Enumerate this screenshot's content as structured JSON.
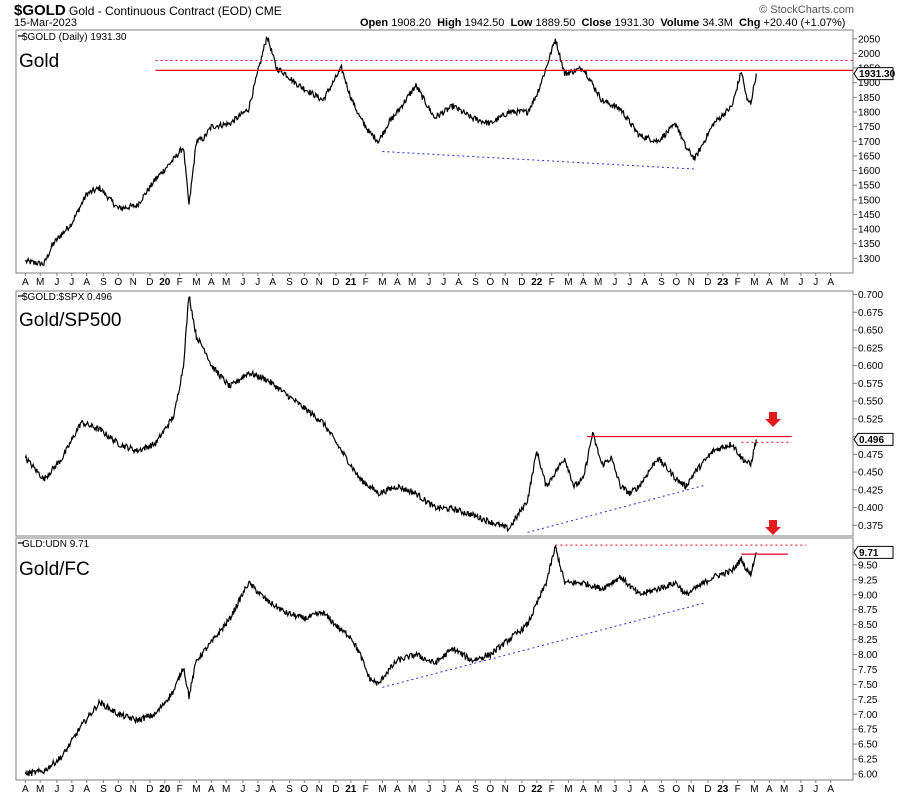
{
  "header": {
    "symbol": "$GOLD",
    "description": "Gold - Continuous Contract (EOD)",
    "exchange": "CME",
    "date": "15-Mar-2023",
    "open_label": "Open",
    "open": "1908.20",
    "high_label": "High",
    "high": "1942.50",
    "low_label": "Low",
    "low": "1889.50",
    "close_label": "Close",
    "close": "1931.30",
    "volume_label": "Volume",
    "volume": "34.3M",
    "chg_label": "Chg",
    "chg": "+20.40 (+1.07%)",
    "copyright": "© StockCharts.com"
  },
  "x_axis": {
    "labels": [
      {
        "t": 2019.0,
        "text": "A"
      },
      {
        "t": 2019.08,
        "text": "M"
      },
      {
        "t": 2019.17,
        "text": "J"
      },
      {
        "t": 2019.25,
        "text": "J"
      },
      {
        "t": 2019.33,
        "text": "A"
      },
      {
        "t": 2019.42,
        "text": "S"
      },
      {
        "t": 2019.5,
        "text": "O"
      },
      {
        "t": 2019.58,
        "text": "N"
      },
      {
        "t": 2019.67,
        "text": "D"
      },
      {
        "t": 2019.75,
        "text": "20",
        "year": true
      },
      {
        "t": 2019.83,
        "text": "F"
      },
      {
        "t": 2019.92,
        "text": "M"
      },
      {
        "t": 2020.0,
        "text": "A"
      },
      {
        "t": 2020.08,
        "text": "M"
      },
      {
        "t": 2020.17,
        "text": "J"
      },
      {
        "t": 2020.25,
        "text": "J"
      },
      {
        "t": 2020.33,
        "text": "A"
      },
      {
        "t": 2020.42,
        "text": "S"
      },
      {
        "t": 2020.5,
        "text": "O"
      },
      {
        "t": 2020.58,
        "text": "N"
      },
      {
        "t": 2020.67,
        "text": "D"
      },
      {
        "t": 2020.75,
        "text": "21",
        "year": true
      },
      {
        "t": 2020.83,
        "text": "F"
      },
      {
        "t": 2020.92,
        "text": "M"
      },
      {
        "t": 2021.0,
        "text": "A"
      },
      {
        "t": 2021.08,
        "text": "M"
      },
      {
        "t": 2021.17,
        "text": "J"
      },
      {
        "t": 2021.25,
        "text": "J"
      },
      {
        "t": 2021.33,
        "text": "A"
      },
      {
        "t": 2021.42,
        "text": "S"
      },
      {
        "t": 2021.5,
        "text": "O"
      },
      {
        "t": 2021.58,
        "text": "N"
      },
      {
        "t": 2021.67,
        "text": "D"
      },
      {
        "t": 2021.75,
        "text": "22",
        "year": true
      },
      {
        "t": 2021.83,
        "text": "F"
      },
      {
        "t": 2021.92,
        "text": "M"
      },
      {
        "t": 2022.0,
        "text": "A"
      },
      {
        "t": 2022.08,
        "text": "M"
      },
      {
        "t": 2022.17,
        "text": "J"
      },
      {
        "t": 2022.25,
        "text": "J"
      },
      {
        "t": 2022.33,
        "text": "A"
      },
      {
        "t": 2022.42,
        "text": "S"
      },
      {
        "t": 2022.5,
        "text": "O"
      },
      {
        "t": 2022.58,
        "text": "N"
      },
      {
        "t": 2022.67,
        "text": "D"
      },
      {
        "t": 2022.75,
        "text": "23",
        "year": true
      },
      {
        "t": 2022.83,
        "text": "F"
      },
      {
        "t": 2022.92,
        "text": "M"
      },
      {
        "t": 2023.0,
        "text": "A"
      },
      {
        "t": 2023.08,
        "text": "M"
      },
      {
        "t": 2023.17,
        "text": "J"
      },
      {
        "t": 2023.25,
        "text": "J"
      },
      {
        "t": 2023.33,
        "text": "A"
      }
    ]
  },
  "chart_data": [
    {
      "type": "line",
      "panel_title": "Gold",
      "legend": "$GOLD (Daily) 1931.30",
      "last_value": "1931.30",
      "ylim": [
        1250,
        2080
      ],
      "yticks": [
        1300,
        1350,
        1400,
        1450,
        1500,
        1550,
        1600,
        1650,
        1700,
        1750,
        1800,
        1850,
        1900,
        1950,
        2000,
        2050
      ],
      "series": [
        {
          "x": [
            2019.0,
            2019.1,
            2019.15,
            2019.25,
            2019.33,
            2019.4,
            2019.5,
            2019.6,
            2019.7,
            2019.8,
            2019.85,
            2019.88,
            2019.92,
            2019.96,
            2020.0,
            2020.1,
            2020.2,
            2020.3,
            2020.35,
            2020.4,
            2020.45,
            2020.5,
            2020.6,
            2020.7,
            2020.75,
            2020.8,
            2020.85,
            2020.9,
            2020.95,
            2021.0,
            2021.1,
            2021.2,
            2021.3,
            2021.4,
            2021.5,
            2021.6,
            2021.7,
            2021.75,
            2021.8,
            2021.85,
            2021.9,
            2022.0,
            2022.1,
            2022.2,
            2022.3,
            2022.4,
            2022.5,
            2022.55,
            2022.6,
            2022.7,
            2022.8,
            2022.85,
            2022.88,
            2022.9,
            2022.93
          ],
          "y": [
            1290,
            1280,
            1350,
            1420,
            1520,
            1540,
            1470,
            1480,
            1570,
            1640,
            1680,
            1480,
            1700,
            1710,
            1750,
            1760,
            1810,
            2060,
            1950,
            1930,
            1900,
            1880,
            1840,
            1950,
            1850,
            1780,
            1730,
            1700,
            1760,
            1800,
            1890,
            1780,
            1820,
            1780,
            1760,
            1800,
            1800,
            1860,
            1950,
            2050,
            1930,
            1950,
            1840,
            1810,
            1720,
            1700,
            1760,
            1680,
            1640,
            1760,
            1820,
            1940,
            1840,
            1830,
            1931
          ]
        }
      ],
      "annotations": {
        "resistance": 1942,
        "resistance_dotted": 1976,
        "support_trend": [
          [
            2020.92,
            1665
          ],
          [
            2022.6,
            1605
          ]
        ]
      }
    },
    {
      "type": "line",
      "panel_title": "Gold/SP500",
      "legend": "$GOLD:$SPX 0.496",
      "last_value": "0.496",
      "ylim": [
        0.36,
        0.705
      ],
      "yticks": [
        0.375,
        0.4,
        0.425,
        0.45,
        0.475,
        0.5,
        0.525,
        0.55,
        0.575,
        0.6,
        0.625,
        0.65,
        0.675,
        0.7
      ],
      "series": [
        {
          "x": [
            2019.0,
            2019.1,
            2019.2,
            2019.3,
            2019.4,
            2019.5,
            2019.6,
            2019.7,
            2019.8,
            2019.85,
            2019.88,
            2019.92,
            2019.97,
            2020.0,
            2020.1,
            2020.2,
            2020.3,
            2020.4,
            2020.5,
            2020.6,
            2020.7,
            2020.8,
            2020.9,
            2021.0,
            2021.1,
            2021.2,
            2021.3,
            2021.4,
            2021.5,
            2021.6,
            2021.7,
            2021.75,
            2021.8,
            2021.85,
            2021.9,
            2021.95,
            2022.0,
            2022.05,
            2022.1,
            2022.15,
            2022.2,
            2022.25,
            2022.3,
            2022.4,
            2022.5,
            2022.55,
            2022.6,
            2022.7,
            2022.8,
            2022.85,
            2022.9,
            2022.93
          ],
          "y": [
            0.47,
            0.44,
            0.47,
            0.52,
            0.51,
            0.49,
            0.48,
            0.49,
            0.53,
            0.6,
            0.7,
            0.64,
            0.62,
            0.6,
            0.57,
            0.59,
            0.58,
            0.56,
            0.54,
            0.52,
            0.48,
            0.44,
            0.42,
            0.43,
            0.42,
            0.4,
            0.398,
            0.39,
            0.38,
            0.37,
            0.41,
            0.48,
            0.43,
            0.45,
            0.47,
            0.43,
            0.44,
            0.505,
            0.46,
            0.47,
            0.43,
            0.42,
            0.43,
            0.47,
            0.44,
            0.43,
            0.45,
            0.48,
            0.49,
            0.47,
            0.46,
            0.496
          ]
        }
      ],
      "annotations": {
        "resistance": 0.5,
        "resistance_dotted": 0.492,
        "support_trend": [
          [
            2021.7,
            0.365
          ],
          [
            2022.66,
            0.432
          ]
        ],
        "arrow_at": 2023.02
      }
    },
    {
      "type": "line",
      "panel_title": "Gold/FC",
      "legend": "GLD:UDN 9.71",
      "last_value": "9.71",
      "ylim": [
        5.9,
        9.95
      ],
      "yticks": [
        6.0,
        6.25,
        6.5,
        6.75,
        7.0,
        7.25,
        7.5,
        7.75,
        8.0,
        8.25,
        8.5,
        8.75,
        9.0,
        9.25,
        9.5,
        9.75
      ],
      "series": [
        {
          "x": [
            2019.0,
            2019.1,
            2019.2,
            2019.3,
            2019.4,
            2019.5,
            2019.6,
            2019.7,
            2019.8,
            2019.85,
            2019.88,
            2019.92,
            2020.0,
            2020.1,
            2020.2,
            2020.3,
            2020.35,
            2020.4,
            2020.5,
            2020.6,
            2020.7,
            2020.75,
            2020.8,
            2020.85,
            2020.9,
            2020.93,
            2021.0,
            2021.1,
            2021.2,
            2021.3,
            2021.4,
            2021.5,
            2021.6,
            2021.7,
            2021.8,
            2021.85,
            2021.9,
            2022.0,
            2022.1,
            2022.2,
            2022.3,
            2022.4,
            2022.5,
            2022.55,
            2022.6,
            2022.7,
            2022.8,
            2022.85,
            2022.88,
            2022.9,
            2022.93
          ],
          "y": [
            6.0,
            6.05,
            6.3,
            6.8,
            7.2,
            7.0,
            6.9,
            7.0,
            7.4,
            7.8,
            7.3,
            7.9,
            8.2,
            8.6,
            9.2,
            8.9,
            8.8,
            8.7,
            8.6,
            8.7,
            8.4,
            8.3,
            8.0,
            7.6,
            7.5,
            7.65,
            7.9,
            8.0,
            7.85,
            8.1,
            7.9,
            8.0,
            8.25,
            8.5,
            9.2,
            9.8,
            9.2,
            9.2,
            9.1,
            9.3,
            9.0,
            9.1,
            9.2,
            9.0,
            9.1,
            9.3,
            9.4,
            9.6,
            9.4,
            9.35,
            9.71
          ]
        }
      ],
      "annotations": {
        "resistance": 9.68,
        "resistance_dotted": 9.83,
        "support_trend": [
          [
            2020.92,
            7.45
          ],
          [
            2022.66,
            8.87
          ]
        ],
        "arrow_at": 2023.02
      }
    }
  ],
  "colors": {
    "line": "#000000",
    "resistance": "#e8001f",
    "support_trend": "#2b2bd6",
    "arrow": "#e31b1b",
    "grid": "#bfbfbf",
    "frame": "#7f7f7f"
  }
}
